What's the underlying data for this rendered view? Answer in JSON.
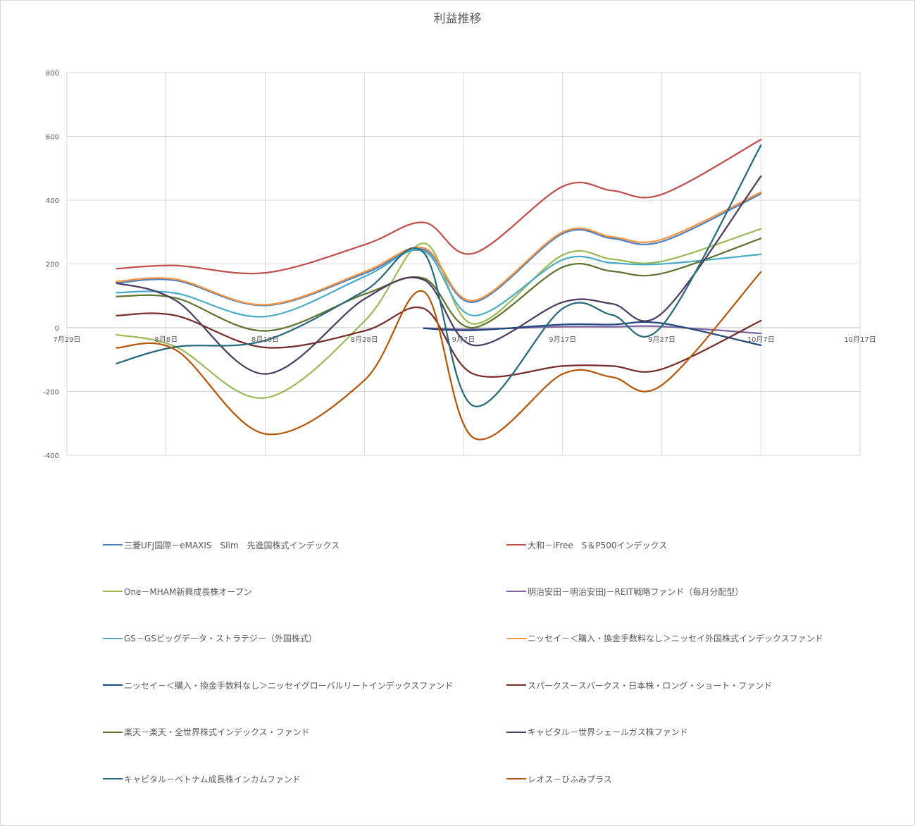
{
  "chart_data": {
    "type": "line",
    "title": "利益推移",
    "x_axis": {
      "min": "2019-07-29",
      "max": "2019-10-17",
      "tick_labels": [
        "7月29日",
        "8月8日",
        "8月18日",
        "8月28日",
        "9月7日",
        "9月17日",
        "9月27日",
        "10月7日",
        "10月17日"
      ]
    },
    "y_axis": {
      "min": -400,
      "max": 800,
      "step": 200,
      "tick_labels": [
        "800",
        "600",
        "400",
        "200",
        "0",
        "-200",
        "-400"
      ]
    },
    "grid": true,
    "smooth": true,
    "legend_position": "bottom",
    "series": [
      {
        "name": "三菱UFJ国際－eMAXIS　Slim　先進国株式インデックス",
        "color": "#4f81bd",
        "points": [
          [
            "2019-08-03",
            140
          ],
          [
            "2019-08-09",
            148
          ],
          [
            "2019-08-18",
            70
          ],
          [
            "2019-08-28",
            170
          ],
          [
            "2019-09-03",
            245
          ],
          [
            "2019-09-08",
            80
          ],
          [
            "2019-09-17",
            295
          ],
          [
            "2019-09-22",
            280
          ],
          [
            "2019-09-27",
            270
          ],
          [
            "2019-10-07",
            420
          ]
        ]
      },
      {
        "name": "大和－iFree　S＆P500インデックス",
        "color": "#c0504d",
        "points": [
          [
            "2019-08-03",
            185
          ],
          [
            "2019-08-09",
            195
          ],
          [
            "2019-08-18",
            172
          ],
          [
            "2019-08-28",
            260
          ],
          [
            "2019-09-03",
            330
          ],
          [
            "2019-09-08",
            233
          ],
          [
            "2019-09-17",
            443
          ],
          [
            "2019-09-22",
            430
          ],
          [
            "2019-09-27",
            418
          ],
          [
            "2019-10-07",
            590
          ]
        ]
      },
      {
        "name": "One－MHAM新興成長株オープン",
        "color": "#9bbb59",
        "points": [
          [
            "2019-08-03",
            -22
          ],
          [
            "2019-08-09",
            -60
          ],
          [
            "2019-08-18",
            -220
          ],
          [
            "2019-08-28",
            20
          ],
          [
            "2019-09-03",
            265
          ],
          [
            "2019-09-08",
            12
          ],
          [
            "2019-09-17",
            228
          ],
          [
            "2019-09-22",
            215
          ],
          [
            "2019-09-27",
            208
          ],
          [
            "2019-10-07",
            310
          ]
        ]
      },
      {
        "name": "明治安田－明治安田J－REIT戦略ファンド（毎月分配型）",
        "color": "#8064a2",
        "points": [
          [
            "2019-09-03",
            -1
          ],
          [
            "2019-09-08",
            -5
          ],
          [
            "2019-09-17",
            3
          ],
          [
            "2019-09-22",
            3
          ],
          [
            "2019-09-27",
            4
          ],
          [
            "2019-10-07",
            -18
          ]
        ]
      },
      {
        "name": "GS－GSビッグデータ・ストラテジー（外国株式）",
        "color": "#4bacc6",
        "points": [
          [
            "2019-08-03",
            110
          ],
          [
            "2019-08-09",
            108
          ],
          [
            "2019-08-18",
            35
          ],
          [
            "2019-08-28",
            160
          ],
          [
            "2019-09-03",
            240
          ],
          [
            "2019-09-08",
            38
          ],
          [
            "2019-09-17",
            213
          ],
          [
            "2019-09-22",
            203
          ],
          [
            "2019-09-27",
            200
          ],
          [
            "2019-10-07",
            230
          ]
        ]
      },
      {
        "name": "ニッセイ－＜購入・換金手数料なし＞ニッセイ外国株式インデックスファンド",
        "color": "#f79646",
        "points": [
          [
            "2019-08-03",
            145
          ],
          [
            "2019-08-09",
            152
          ],
          [
            "2019-08-18",
            72
          ],
          [
            "2019-08-28",
            175
          ],
          [
            "2019-09-03",
            250
          ],
          [
            "2019-09-08",
            85
          ],
          [
            "2019-09-17",
            300
          ],
          [
            "2019-09-22",
            285
          ],
          [
            "2019-09-27",
            277
          ],
          [
            "2019-10-07",
            425
          ]
        ]
      },
      {
        "name": "ニッセイ－＜購入・換金手数料なし＞ニッセイグローバルリートインデックスファンド",
        "color": "#1f497d",
        "points": [
          [
            "2019-09-03",
            -2
          ],
          [
            "2019-09-08",
            -8
          ],
          [
            "2019-09-17",
            10
          ],
          [
            "2019-09-22",
            10
          ],
          [
            "2019-09-27",
            14
          ],
          [
            "2019-10-07",
            -55
          ]
        ]
      },
      {
        "name": "スパークス－スパークス・日本株・ロング・ショート・ファンド",
        "color": "#772c2a",
        "points": [
          [
            "2019-08-03",
            38
          ],
          [
            "2019-08-09",
            38
          ],
          [
            "2019-08-18",
            -62
          ],
          [
            "2019-08-28",
            -10
          ],
          [
            "2019-09-03",
            60
          ],
          [
            "2019-09-08",
            -145
          ],
          [
            "2019-09-17",
            -120
          ],
          [
            "2019-09-22",
            -120
          ],
          [
            "2019-09-27",
            -130
          ],
          [
            "2019-10-07",
            22
          ]
        ]
      },
      {
        "name": "楽天－楽天・全世界株式インデックス・ファンド",
        "color": "#5f7530",
        "points": [
          [
            "2019-08-03",
            98
          ],
          [
            "2019-08-09",
            93
          ],
          [
            "2019-08-18",
            -10
          ],
          [
            "2019-08-28",
            105
          ],
          [
            "2019-09-03",
            155
          ],
          [
            "2019-09-08",
            0
          ],
          [
            "2019-09-17",
            190
          ],
          [
            "2019-09-22",
            177
          ],
          [
            "2019-09-27",
            170
          ],
          [
            "2019-10-07",
            280
          ]
        ]
      },
      {
        "name": "キャピタル－世界シェールガス株ファンド",
        "color": "#4d3b62",
        "points": [
          [
            "2019-08-03",
            140
          ],
          [
            "2019-08-09",
            85
          ],
          [
            "2019-08-18",
            -145
          ],
          [
            "2019-08-28",
            90
          ],
          [
            "2019-09-03",
            150
          ],
          [
            "2019-09-08",
            -55
          ],
          [
            "2019-09-17",
            80
          ],
          [
            "2019-09-22",
            75
          ],
          [
            "2019-09-27",
            45
          ],
          [
            "2019-10-07",
            475
          ]
        ]
      },
      {
        "name": "キャピタル－ベトナム成長株インカムファンド",
        "color": "#276a7c",
        "points": [
          [
            "2019-08-03",
            -112
          ],
          [
            "2019-08-09",
            -60
          ],
          [
            "2019-08-18",
            -40
          ],
          [
            "2019-08-28",
            115
          ],
          [
            "2019-09-03",
            235
          ],
          [
            "2019-09-08",
            -245
          ],
          [
            "2019-09-17",
            60
          ],
          [
            "2019-09-22",
            40
          ],
          [
            "2019-09-27",
            5
          ],
          [
            "2019-10-07",
            572
          ]
        ]
      },
      {
        "name": "レオス－ひふみプラス",
        "color": "#b65708",
        "points": [
          [
            "2019-08-03",
            -63
          ],
          [
            "2019-08-09",
            -70
          ],
          [
            "2019-08-18",
            -333
          ],
          [
            "2019-08-28",
            -165
          ],
          [
            "2019-09-03",
            113
          ],
          [
            "2019-09-08",
            -345
          ],
          [
            "2019-09-17",
            -145
          ],
          [
            "2019-09-22",
            -155
          ],
          [
            "2019-09-27",
            -180
          ],
          [
            "2019-10-07",
            175
          ]
        ]
      }
    ]
  }
}
